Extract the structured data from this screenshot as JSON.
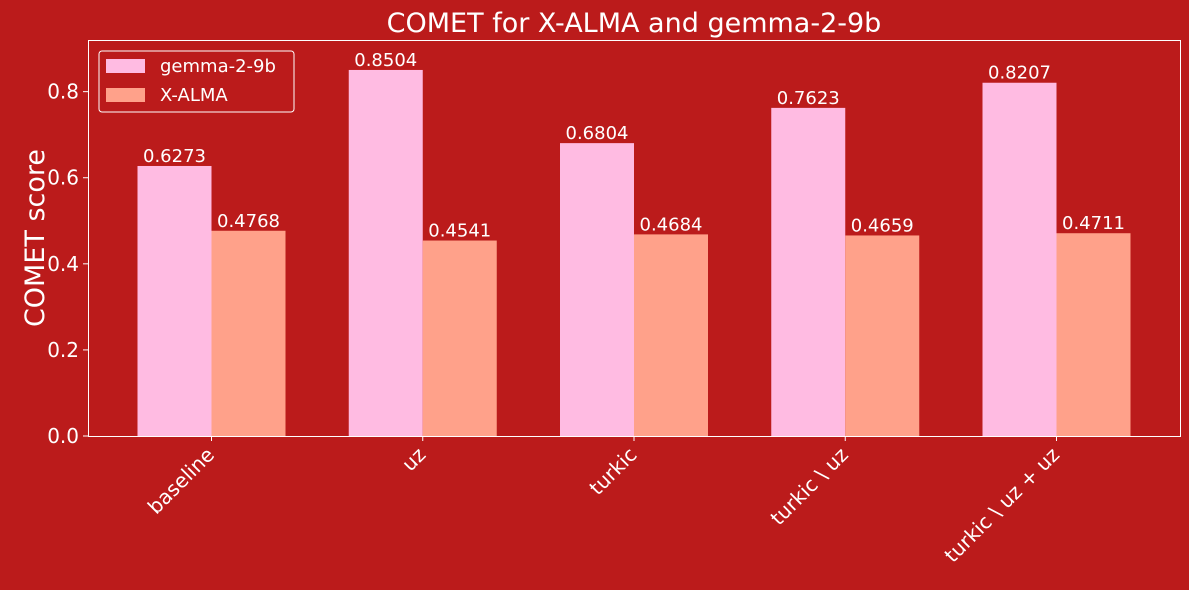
{
  "chart_data": {
    "type": "bar",
    "title": "COMET for X-ALMA and gemma-2-9b",
    "xlabel": "",
    "ylabel": "COMET score",
    "ylim": [
      0,
      0.92
    ],
    "yticks": [
      0.0,
      0.2,
      0.4,
      0.6,
      0.8
    ],
    "ytick_labels": [
      "0.0",
      "0.2",
      "0.4",
      "0.6",
      "0.8"
    ],
    "categories": [
      "baseline",
      "uz",
      "turkic",
      "turkic \\ uz",
      "turkic \\ uz + uz"
    ],
    "series": [
      {
        "name": "gemma-2-9b",
        "values": [
          0.6273,
          0.8504,
          0.6804,
          0.7623,
          0.8207
        ],
        "labels": [
          "0.6273",
          "0.8504",
          "0.6804",
          "0.7623",
          "0.8207"
        ],
        "color": "#FFBBE2"
      },
      {
        "name": "X-ALMA",
        "values": [
          0.4768,
          0.4541,
          0.4684,
          0.4659,
          0.4711
        ],
        "labels": [
          "0.4768",
          "0.4541",
          "0.4684",
          "0.4659",
          "0.4711"
        ],
        "color": "#FFA18A"
      }
    ],
    "legend_position": "top-left",
    "grid": false,
    "background_color": "#BB1B1B",
    "axes_color": "#FFFFFF",
    "text_color": "#FFFFFF"
  }
}
